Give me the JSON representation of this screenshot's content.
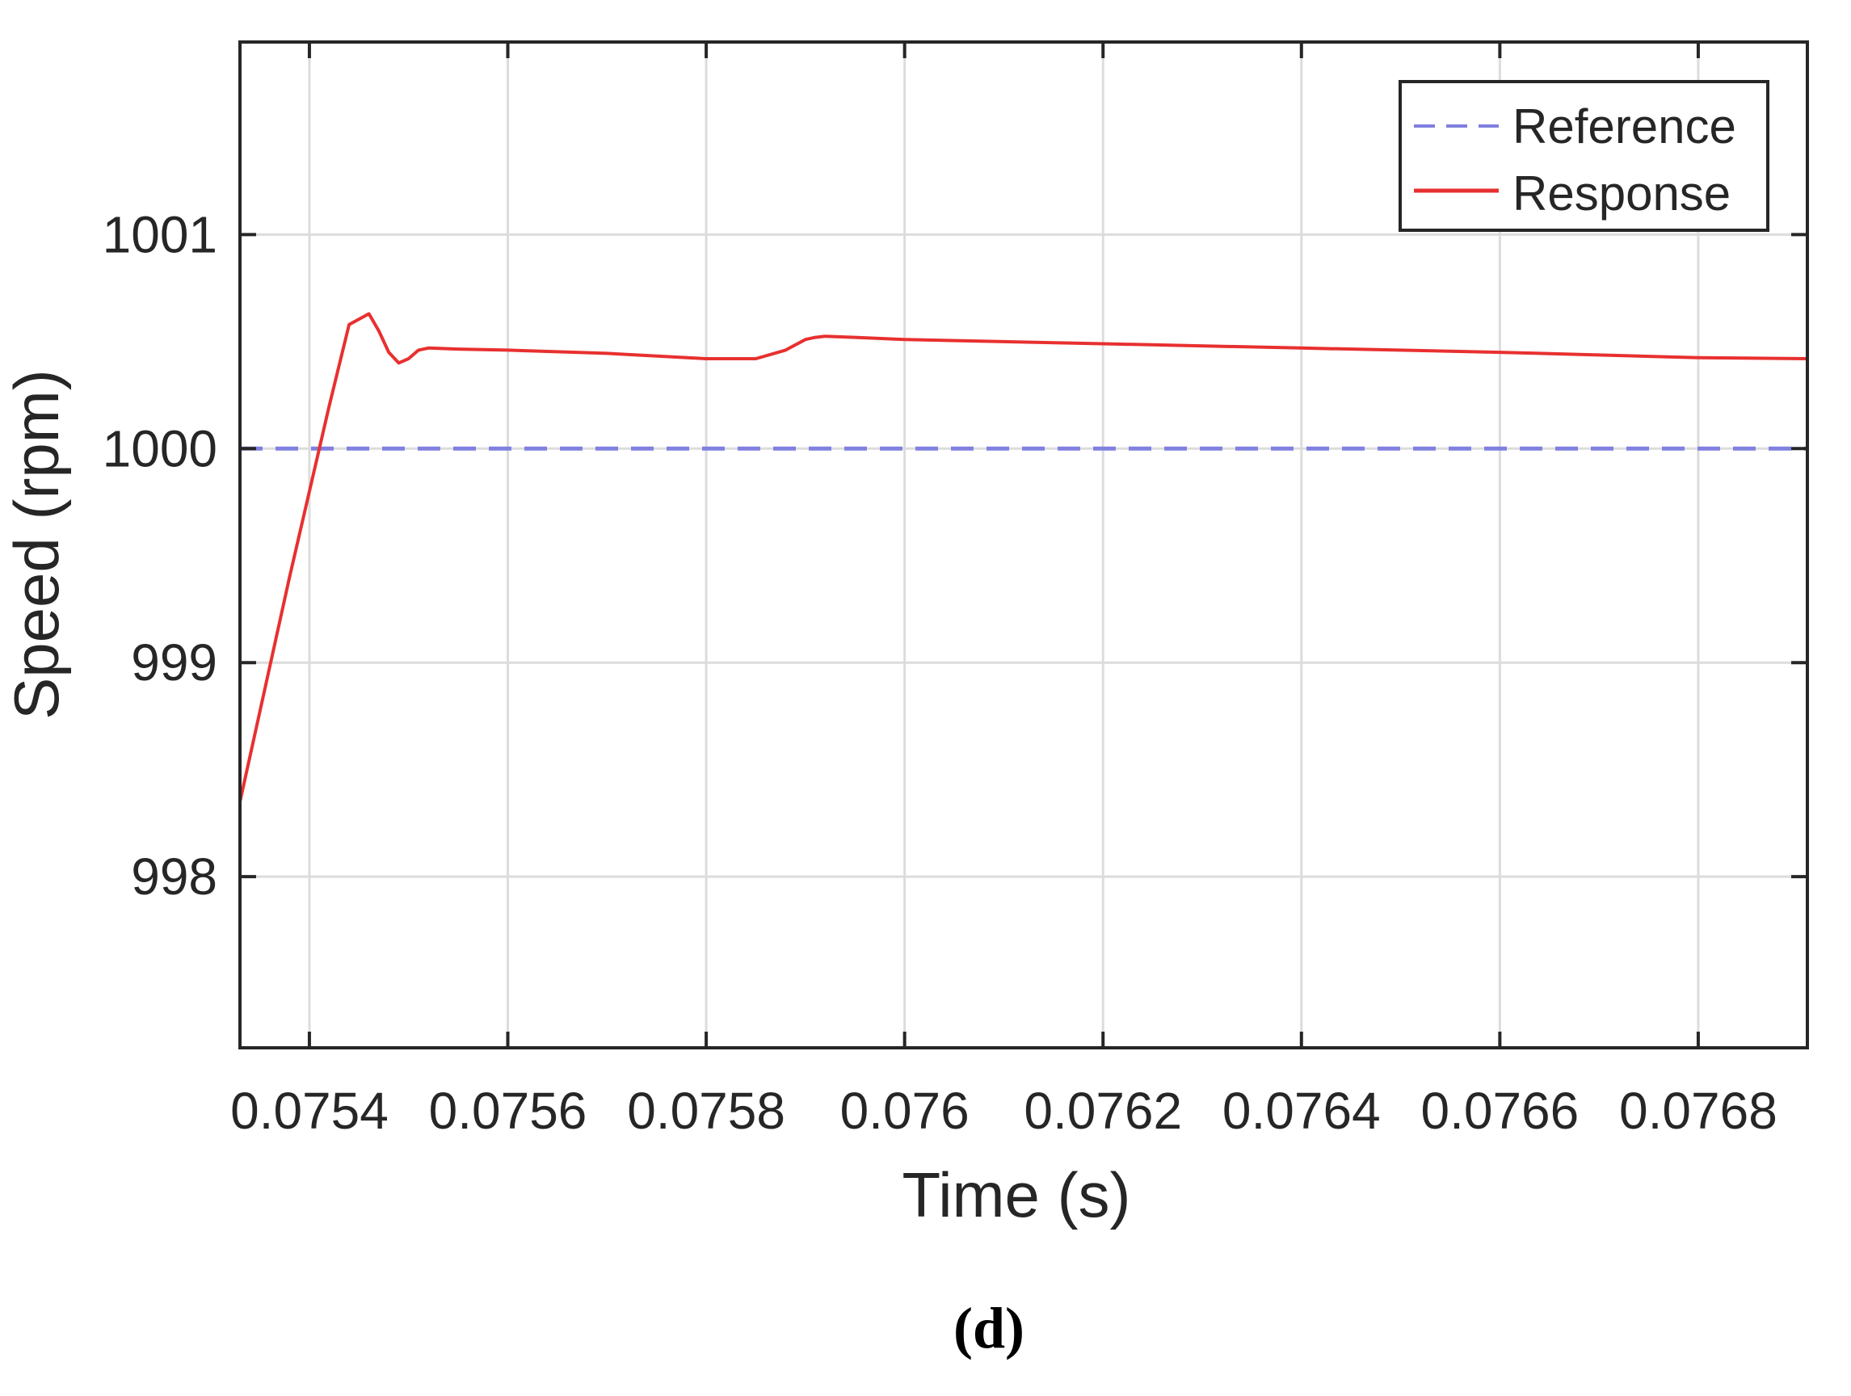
{
  "chart_data": {
    "type": "line",
    "xlabel": "Time (s)",
    "ylabel": "Speed (rpm)",
    "panel_label": "(d)",
    "xlim": [
      0.07533,
      0.07691
    ],
    "ylim": [
      997.2,
      1001.9
    ],
    "xticks": [
      0.0754,
      0.0756,
      0.0758,
      0.076,
      0.0762,
      0.0764,
      0.0766,
      0.0768
    ],
    "xtick_labels": [
      "0.0754",
      "0.0756",
      "0.0758",
      "0.076",
      "0.0762",
      "0.0764",
      "0.0766",
      "0.0768"
    ],
    "yticks": [
      998,
      999,
      1000,
      1001
    ],
    "ytick_labels": [
      "998",
      "999",
      "1000",
      "1001"
    ],
    "grid": true,
    "legend_position": "top-right",
    "series": [
      {
        "name": "Reference",
        "style": "dashed",
        "color": "#8080e0",
        "x": [
          0.07533,
          0.07691
        ],
        "y": [
          1000.0,
          1000.0
        ]
      },
      {
        "name": "Response",
        "style": "solid",
        "color": "#e83030",
        "x": [
          0.07533,
          0.07538,
          0.07542,
          0.07544,
          0.07546,
          0.07547,
          0.07548,
          0.07549,
          0.0755,
          0.07551,
          0.07552,
          0.07555,
          0.0756,
          0.0757,
          0.0758,
          0.07585,
          0.07588,
          0.0759,
          0.07591,
          0.07592,
          0.07595,
          0.076,
          0.0762,
          0.0764,
          0.0766,
          0.0768,
          0.07691
        ],
        "y": [
          998.35,
          999.4,
          1000.2,
          1000.58,
          1000.63,
          1000.55,
          1000.45,
          1000.4,
          1000.42,
          1000.46,
          1000.47,
          1000.465,
          1000.46,
          1000.445,
          1000.42,
          1000.42,
          1000.46,
          1000.51,
          1000.52,
          1000.525,
          1000.52,
          1000.51,
          1000.49,
          1000.47,
          1000.45,
          1000.425,
          1000.42
        ]
      }
    ]
  }
}
